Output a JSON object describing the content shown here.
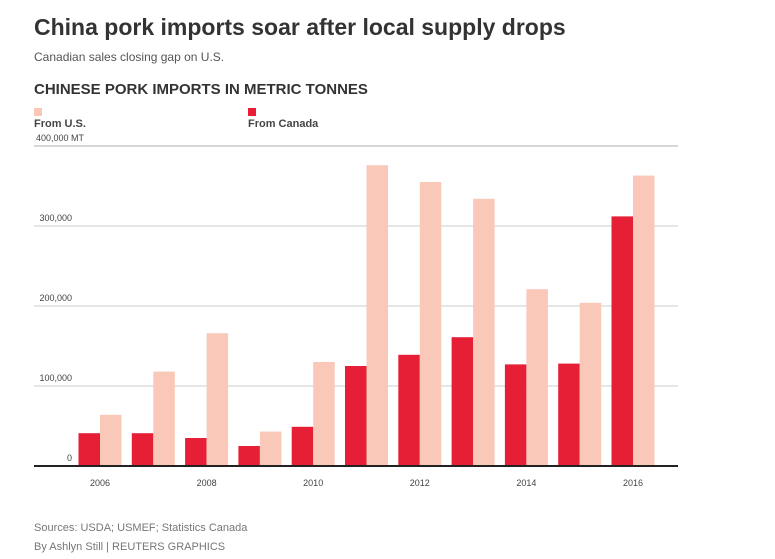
{
  "title": "China pork imports soar after local supply drops",
  "subtitle": "Canadian sales closing gap on U.S.",
  "footer": {
    "sources": "Sources: USDA; USMEF; Statistics Canada",
    "byline": "By Ashlyn Still | REUTERS GRAPHICS"
  },
  "chart_data": {
    "type": "bar",
    "title": "CHINESE PORK IMPORTS IN METRIC TONNES",
    "ylabel": "MT",
    "ylim": [
      0,
      400000
    ],
    "yticks": [
      {
        "v": 0,
        "label": "0"
      },
      {
        "v": 100000,
        "label": "100,000"
      },
      {
        "v": 200000,
        "label": "200,000"
      },
      {
        "v": 300000,
        "label": "300,000"
      },
      {
        "v": 400000,
        "label": "400,000  MT"
      }
    ],
    "categories": [
      "2006",
      "2007",
      "2008",
      "2009",
      "2010",
      "2011",
      "2012",
      "2013",
      "2014",
      "2015",
      "2016"
    ],
    "xtick_labels": [
      "2006",
      "",
      "2008",
      "",
      "2010",
      "",
      "2012",
      "",
      "2014",
      "",
      "2016"
    ],
    "series": [
      {
        "name": "From Canada",
        "color": "#E61E36",
        "values": [
          41000,
          41000,
          35000,
          25000,
          49000,
          125000,
          139000,
          161000,
          127000,
          128000,
          312000
        ]
      },
      {
        "name": "From U.S.",
        "color": "#F9C8B8",
        "values": [
          64000,
          118000,
          166000,
          43000,
          130000,
          376000,
          355000,
          334000,
          221000,
          204000,
          363000
        ]
      }
    ],
    "legend": [
      {
        "label": "From U.S.",
        "color": "#F9C8B8"
      },
      {
        "label": "From Canada",
        "color": "#E61E36"
      }
    ],
    "legend_position": "top-left",
    "grid": true
  }
}
